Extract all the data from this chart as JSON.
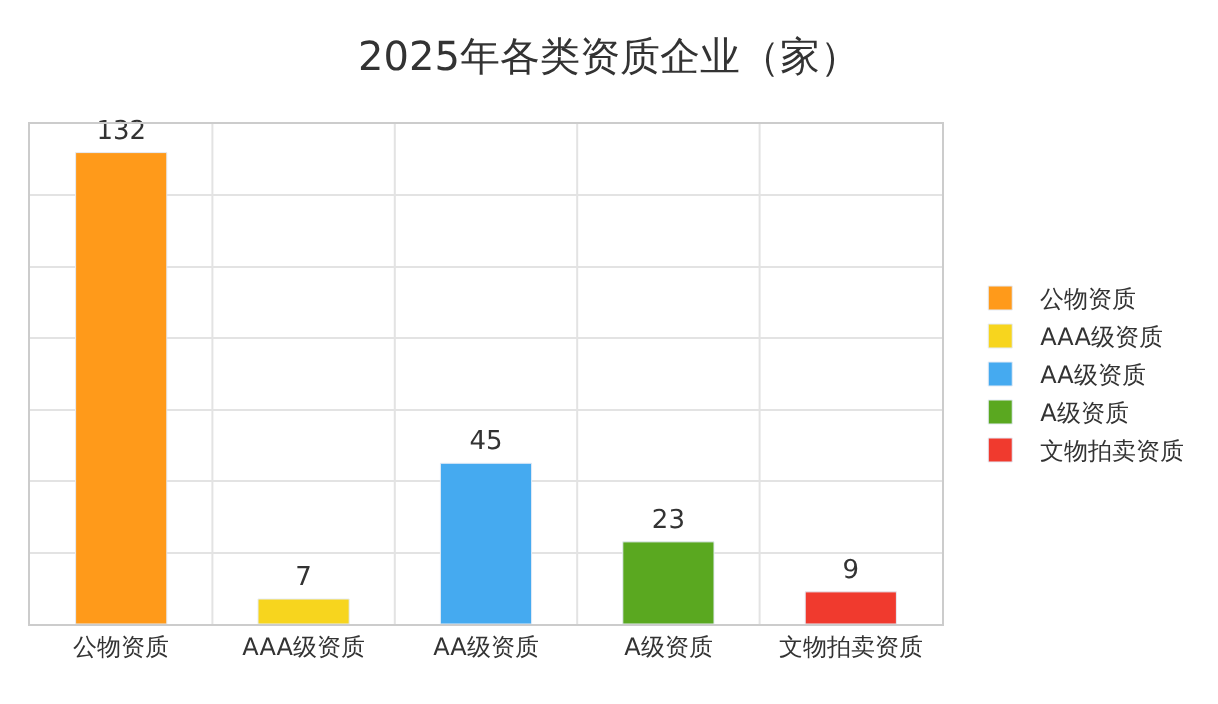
{
  "chart_data": {
    "type": "bar",
    "title": "2025年各类资质企业（家）",
    "categories": [
      "公物资质",
      "AAA级资质",
      "AA级资质",
      "A级资质",
      "文物拍卖资质"
    ],
    "series": [
      {
        "name": "公物资质",
        "color": "#ff9a1a",
        "values": [
          132,
          null,
          null,
          null,
          null
        ]
      },
      {
        "name": "AAA级资质",
        "color": "#f7d51e",
        "values": [
          null,
          7,
          null,
          null,
          null
        ]
      },
      {
        "name": "AA级资质",
        "color": "#45aaf0",
        "values": [
          null,
          null,
          45,
          null,
          null
        ]
      },
      {
        "name": "A级资质",
        "color": "#5aa820",
        "values": [
          null,
          null,
          null,
          23,
          null
        ]
      },
      {
        "name": "文物拍卖资质",
        "color": "#f03a2e",
        "values": [
          null,
          null,
          null,
          null,
          9
        ]
      }
    ],
    "ylim": [
      0,
      140
    ],
    "yticks": [
      0,
      20,
      40,
      60,
      80,
      100,
      120,
      140
    ],
    "tick_labels": "x",
    "grid": true,
    "legend": "right",
    "data_labels": true
  }
}
